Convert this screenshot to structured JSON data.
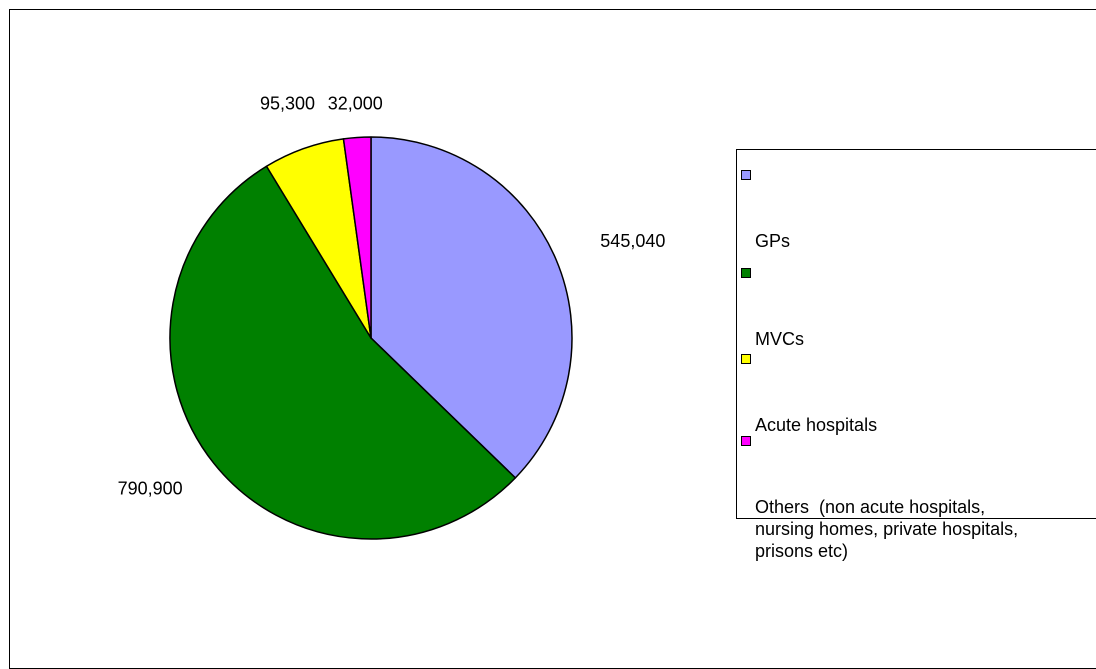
{
  "chart_data": {
    "type": "pie",
    "title": "",
    "categories": [
      "GPs",
      "MVCs",
      "Acute hospitals",
      "Others  (non acute hospitals, nursing homes, private hospitals, prisons etc)"
    ],
    "values": [
      545040,
      790900,
      95300,
      32000
    ],
    "value_labels": [
      "545,040",
      "790,900",
      "95,300",
      "32,000"
    ],
    "colors": [
      "#9999FF",
      "#008000",
      "#FFFF00",
      "#FF00FF"
    ],
    "start_angle": "12 o'clock",
    "direction": "clockwise",
    "legend": {
      "position": "right",
      "items": [
        {
          "label": "GPs",
          "color": "#9999FF"
        },
        {
          "label": "MVCs",
          "color": "#008000"
        },
        {
          "label": "Acute hospitals",
          "color": "#FFFF00"
        },
        {
          "label": "Others  (non acute hospitals,\nnursing homes, private hospitals,\nprisons etc)",
          "color": "#FF00FF"
        }
      ]
    }
  }
}
